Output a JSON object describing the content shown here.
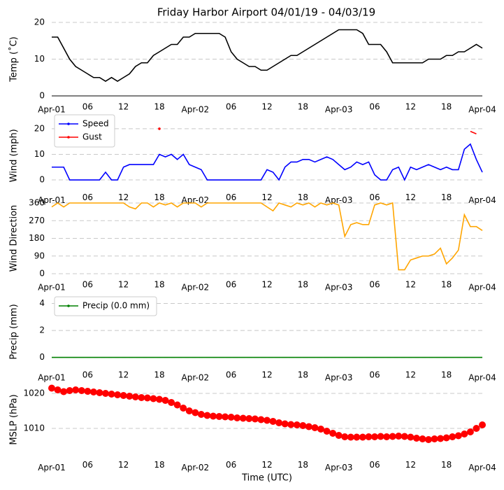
{
  "title": "Friday Harbor Airport 04/01/19 - 04/03/19",
  "chart_data": [
    {
      "type": "line",
      "ylabel": "Temp (˚C)",
      "x": [
        0,
        1,
        2,
        3,
        4,
        5,
        6,
        7,
        8,
        9,
        10,
        11,
        12,
        13,
        14,
        15,
        16,
        17,
        18,
        19,
        20,
        21,
        22,
        23,
        24,
        25,
        26,
        27,
        28,
        29,
        30,
        31,
        32,
        33,
        34,
        35,
        36,
        37,
        38,
        39,
        40,
        41,
        42,
        43,
        44,
        45,
        46,
        47,
        48,
        49,
        50,
        51,
        52,
        53,
        54,
        55,
        56,
        57,
        58,
        59,
        60,
        61,
        62,
        63,
        64,
        65,
        66,
        67,
        68,
        69,
        70,
        71,
        72
      ],
      "values": [
        16,
        16,
        13,
        10,
        8,
        7,
        6,
        5,
        5,
        4,
        5,
        4,
        5,
        6,
        8,
        9,
        9,
        11,
        12,
        13,
        14,
        14,
        16,
        16,
        17,
        17,
        17,
        17,
        17,
        16,
        12,
        10,
        9,
        8,
        8,
        7,
        7,
        8,
        9,
        10,
        11,
        11,
        12,
        13,
        14,
        15,
        16,
        17,
        18,
        18,
        18,
        18,
        17,
        14,
        14,
        14,
        12,
        9,
        9,
        9,
        9,
        9,
        9,
        10,
        10,
        10,
        11,
        11,
        12,
        12,
        13,
        14,
        13
      ],
      "color": "#000000",
      "xlim": [
        0,
        72
      ],
      "xticks": [
        {
          "value": 0,
          "label": "Apr-01"
        },
        {
          "value": 6,
          "label": "06"
        },
        {
          "value": 12,
          "label": "12"
        },
        {
          "value": 18,
          "label": "18"
        },
        {
          "value": 24,
          "label": "Apr-02"
        },
        {
          "value": 30,
          "label": "06"
        },
        {
          "value": 36,
          "label": "12"
        },
        {
          "value": 42,
          "label": "18"
        },
        {
          "value": 48,
          "label": "Apr-03"
        },
        {
          "value": 54,
          "label": "06"
        },
        {
          "value": 60,
          "label": "12"
        },
        {
          "value": 66,
          "label": "18"
        },
        {
          "value": 72,
          "label": "Apr-04"
        }
      ],
      "ylim": [
        0,
        20
      ],
      "yticks": [
        0,
        10,
        20
      ],
      "grid": true
    },
    {
      "type": "line",
      "ylabel": "Wind (mph)",
      "x": [
        0,
        1,
        2,
        3,
        4,
        5,
        6,
        7,
        8,
        9,
        10,
        11,
        12,
        13,
        14,
        15,
        16,
        17,
        18,
        19,
        20,
        21,
        22,
        23,
        24,
        25,
        26,
        27,
        28,
        29,
        30,
        31,
        32,
        33,
        34,
        35,
        36,
        37,
        38,
        39,
        40,
        41,
        42,
        43,
        44,
        45,
        46,
        47,
        48,
        49,
        50,
        51,
        52,
        53,
        54,
        55,
        56,
        57,
        58,
        59,
        60,
        61,
        62,
        63,
        64,
        65,
        66,
        67,
        68,
        69,
        70,
        71,
        72
      ],
      "series": [
        {
          "name": "Speed",
          "color": "#0000ff",
          "values": [
            5,
            5,
            5,
            0,
            0,
            0,
            0,
            0,
            0,
            3,
            0,
            0,
            5,
            6,
            6,
            6,
            6,
            6,
            10,
            9,
            10,
            8,
            10,
            6,
            5,
            4,
            0,
            0,
            0,
            0,
            0,
            0,
            0,
            0,
            0,
            0,
            4,
            3,
            0,
            5,
            7,
            7,
            8,
            8,
            7,
            8,
            9,
            8,
            6,
            4,
            5,
            7,
            6,
            7,
            2,
            0,
            0,
            4,
            5,
            0,
            5,
            4,
            5,
            6,
            5,
            4,
            5,
            4,
            4,
            12,
            14,
            8,
            3
          ]
        },
        {
          "name": "Gust",
          "color": "#ff0000",
          "values": [
            null,
            null,
            null,
            null,
            null,
            null,
            null,
            null,
            null,
            null,
            null,
            null,
            null,
            null,
            null,
            null,
            null,
            null,
            20,
            null,
            null,
            null,
            null,
            null,
            null,
            null,
            null,
            null,
            null,
            null,
            null,
            null,
            null,
            null,
            null,
            null,
            null,
            null,
            null,
            null,
            null,
            null,
            null,
            null,
            null,
            null,
            null,
            null,
            null,
            null,
            null,
            null,
            null,
            null,
            null,
            null,
            null,
            null,
            null,
            null,
            null,
            null,
            null,
            null,
            null,
            null,
            null,
            null,
            null,
            null,
            19,
            18,
            null
          ]
        }
      ],
      "xlim": [
        0,
        72
      ],
      "xticks": [
        {
          "value": 0,
          "label": "Apr-01"
        },
        {
          "value": 6,
          "label": "06"
        },
        {
          "value": 12,
          "label": "12"
        },
        {
          "value": 18,
          "label": "18"
        },
        {
          "value": 24,
          "label": "Apr-02"
        },
        {
          "value": 30,
          "label": "06"
        },
        {
          "value": 36,
          "label": "12"
        },
        {
          "value": 42,
          "label": "18"
        },
        {
          "value": 48,
          "label": "Apr-03"
        },
        {
          "value": 54,
          "label": "06"
        },
        {
          "value": 60,
          "label": "12"
        },
        {
          "value": 66,
          "label": "18"
        },
        {
          "value": 72,
          "label": "Apr-04"
        }
      ],
      "ylim": [
        -7,
        26
      ],
      "yticks": [
        0,
        10,
        20
      ],
      "grid": true,
      "legend": "upper left"
    },
    {
      "type": "line",
      "ylabel": "Wind Direction",
      "x": [
        0,
        1,
        2,
        3,
        4,
        5,
        6,
        7,
        8,
        9,
        10,
        11,
        12,
        13,
        14,
        15,
        16,
        17,
        18,
        19,
        20,
        21,
        22,
        23,
        24,
        25,
        26,
        27,
        28,
        29,
        30,
        31,
        32,
        33,
        34,
        35,
        36,
        37,
        38,
        39,
        40,
        41,
        42,
        43,
        44,
        45,
        46,
        47,
        48,
        49,
        50,
        51,
        52,
        53,
        54,
        55,
        56,
        57,
        58,
        59,
        60,
        61,
        62,
        63,
        64,
        65,
        66,
        67,
        68,
        69,
        70,
        71,
        72
      ],
      "values": [
        340,
        360,
        340,
        360,
        360,
        360,
        360,
        360,
        360,
        360,
        360,
        360,
        360,
        340,
        330,
        360,
        360,
        340,
        360,
        350,
        360,
        340,
        360,
        360,
        360,
        340,
        360,
        360,
        360,
        360,
        360,
        360,
        360,
        360,
        360,
        360,
        340,
        320,
        360,
        350,
        340,
        360,
        350,
        360,
        340,
        360,
        350,
        360,
        350,
        190,
        250,
        260,
        250,
        250,
        350,
        360,
        350,
        360,
        20,
        20,
        70,
        80,
        90,
        90,
        100,
        130,
        50,
        80,
        120,
        300,
        240,
        240,
        220
      ],
      "color": "#ffa500",
      "xlim": [
        0,
        72
      ],
      "xticks": [
        {
          "value": 0,
          "label": "Apr-01"
        },
        {
          "value": 6,
          "label": "06"
        },
        {
          "value": 12,
          "label": "12"
        },
        {
          "value": 18,
          "label": "18"
        },
        {
          "value": 24,
          "label": "Apr-02"
        },
        {
          "value": 30,
          "label": "06"
        },
        {
          "value": 36,
          "label": "12"
        },
        {
          "value": 42,
          "label": "18"
        },
        {
          "value": 48,
          "label": "Apr-03"
        },
        {
          "value": 54,
          "label": "06"
        },
        {
          "value": 60,
          "label": "12"
        },
        {
          "value": 66,
          "label": "18"
        },
        {
          "value": 72,
          "label": "Apr-04"
        }
      ],
      "ylim": [
        0,
        360
      ],
      "yticks": [
        0,
        90,
        180,
        270,
        360
      ],
      "grid": true
    },
    {
      "type": "line",
      "ylabel": "Precip (mm)",
      "x": [
        0,
        1,
        2,
        3,
        4,
        5,
        6,
        7,
        8,
        9,
        10,
        11,
        12,
        13,
        14,
        15,
        16,
        17,
        18,
        19,
        20,
        21,
        22,
        23,
        24,
        25,
        26,
        27,
        28,
        29,
        30,
        31,
        32,
        33,
        34,
        35,
        36,
        37,
        38,
        39,
        40,
        41,
        42,
        43,
        44,
        45,
        46,
        47,
        48,
        49,
        50,
        51,
        52,
        53,
        54,
        55,
        56,
        57,
        58,
        59,
        60,
        61,
        62,
        63,
        64,
        65,
        66,
        67,
        68,
        69,
        70,
        71,
        72
      ],
      "series": [
        {
          "name": "Precip (0.0 mm)",
          "color": "#008000",
          "values": [
            0,
            0,
            0,
            0,
            0,
            0,
            0,
            0,
            0,
            0,
            0,
            0,
            0,
            0,
            0,
            0,
            0,
            0,
            0,
            0,
            0,
            0,
            0,
            0,
            0,
            0,
            0,
            0,
            0,
            0,
            0,
            0,
            0,
            0,
            0,
            0,
            0,
            0,
            0,
            0,
            0,
            0,
            0,
            0,
            0,
            0,
            0,
            0,
            0,
            0,
            0,
            0,
            0,
            0,
            0,
            0,
            0,
            0,
            0,
            0,
            0,
            0,
            0,
            0,
            0,
            0,
            0,
            0,
            0,
            0,
            0,
            0,
            0
          ]
        }
      ],
      "xlim": [
        0,
        72
      ],
      "xticks": [
        {
          "value": 0,
          "label": "Apr-01"
        },
        {
          "value": 6,
          "label": "06"
        },
        {
          "value": 12,
          "label": "12"
        },
        {
          "value": 18,
          "label": "18"
        },
        {
          "value": 24,
          "label": "Apr-02"
        },
        {
          "value": 30,
          "label": "06"
        },
        {
          "value": 36,
          "label": "12"
        },
        {
          "value": 42,
          "label": "18"
        },
        {
          "value": 48,
          "label": "Apr-03"
        },
        {
          "value": 54,
          "label": "06"
        },
        {
          "value": 60,
          "label": "12"
        },
        {
          "value": 66,
          "label": "18"
        },
        {
          "value": 72,
          "label": "Apr-04"
        }
      ],
      "ylim": [
        -0.8,
        4.6
      ],
      "yticks": [
        0,
        2,
        4
      ],
      "grid": true,
      "legend": "upper left"
    },
    {
      "type": "scatter",
      "ylabel": "MSLP (hPa)",
      "xlabel": "Time (UTC)",
      "x": [
        0,
        1,
        2,
        3,
        4,
        5,
        6,
        7,
        8,
        9,
        10,
        11,
        12,
        13,
        14,
        15,
        16,
        17,
        18,
        19,
        20,
        21,
        22,
        23,
        24,
        25,
        26,
        27,
        28,
        29,
        30,
        31,
        32,
        33,
        34,
        35,
        36,
        37,
        38,
        39,
        40,
        41,
        42,
        43,
        44,
        45,
        46,
        47,
        48,
        49,
        50,
        51,
        52,
        53,
        54,
        55,
        56,
        57,
        58,
        59,
        60,
        61,
        62,
        63,
        64,
        65,
        66,
        67,
        68,
        69,
        70,
        71,
        72
      ],
      "values": [
        1021.5,
        1021,
        1020.5,
        1020.8,
        1021,
        1020.8,
        1020.6,
        1020.4,
        1020.2,
        1020,
        1019.8,
        1019.6,
        1019.4,
        1019.2,
        1019,
        1018.8,
        1018.7,
        1018.5,
        1018.3,
        1018,
        1017.4,
        1016.7,
        1015.8,
        1015,
        1014.5,
        1014,
        1013.7,
        1013.5,
        1013.4,
        1013.3,
        1013.2,
        1013,
        1012.9,
        1012.8,
        1012.7,
        1012.5,
        1012.3,
        1012,
        1011.6,
        1011.3,
        1011.1,
        1011,
        1010.8,
        1010.5,
        1010.2,
        1009.8,
        1009.2,
        1008.6,
        1008,
        1007.6,
        1007.5,
        1007.5,
        1007.5,
        1007.6,
        1007.6,
        1007.7,
        1007.6,
        1007.7,
        1007.8,
        1007.7,
        1007.5,
        1007.2,
        1007,
        1006.8,
        1007,
        1007.1,
        1007.3,
        1007.6,
        1007.9,
        1008.4,
        1009,
        1010,
        1011
      ],
      "color": "#ff0000",
      "xlim": [
        0,
        72
      ],
      "xticks": [
        {
          "value": 0,
          "label": "Apr-01"
        },
        {
          "value": 6,
          "label": "06"
        },
        {
          "value": 12,
          "label": "12"
        },
        {
          "value": 18,
          "label": "18"
        },
        {
          "value": 24,
          "label": "Apr-02"
        },
        {
          "value": 30,
          "label": "06"
        },
        {
          "value": 36,
          "label": "12"
        },
        {
          "value": 42,
          "label": "18"
        },
        {
          "value": 48,
          "label": "Apr-03"
        },
        {
          "value": 54,
          "label": "06"
        },
        {
          "value": 60,
          "label": "12"
        },
        {
          "value": 66,
          "label": "18"
        },
        {
          "value": 72,
          "label": "Apr-04"
        }
      ],
      "ylim": [
        1001.5,
        1023.5
      ],
      "yticks": [
        1010,
        1020
      ],
      "grid": true
    }
  ]
}
